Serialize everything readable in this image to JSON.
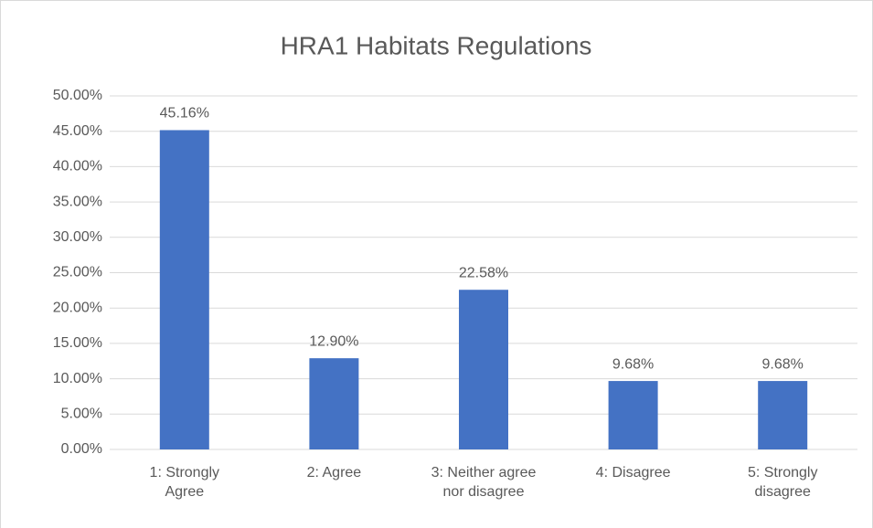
{
  "chart_data": {
    "type": "bar",
    "title": "HRA1 Habitats Regulations",
    "categories": [
      "1: Strongly\nAgree",
      "2: Agree",
      "3: Neither agree\nnor disagree",
      "4: Disagree",
      "5: Strongly\ndisagree"
    ],
    "values": [
      45.16,
      12.9,
      22.58,
      9.68,
      9.68
    ],
    "value_labels": [
      "45.16%",
      "12.90%",
      "22.58%",
      "9.68%",
      "9.68%"
    ],
    "color": "#4472c4",
    "ylim": [
      0,
      50
    ],
    "yticks": [
      {
        "value": 0,
        "label": "0.00%"
      },
      {
        "value": 5,
        "label": "5.00%"
      },
      {
        "value": 10,
        "label": "10.00%"
      },
      {
        "value": 15,
        "label": "15.00%"
      },
      {
        "value": 20,
        "label": "20.00%"
      },
      {
        "value": 25,
        "label": "25.00%"
      },
      {
        "value": 30,
        "label": "30.00%"
      },
      {
        "value": 35,
        "label": "35.00%"
      },
      {
        "value": 40,
        "label": "40.00%"
      },
      {
        "value": 45,
        "label": "45.00%"
      },
      {
        "value": 50,
        "label": "50.00%"
      }
    ],
    "grid": true
  }
}
